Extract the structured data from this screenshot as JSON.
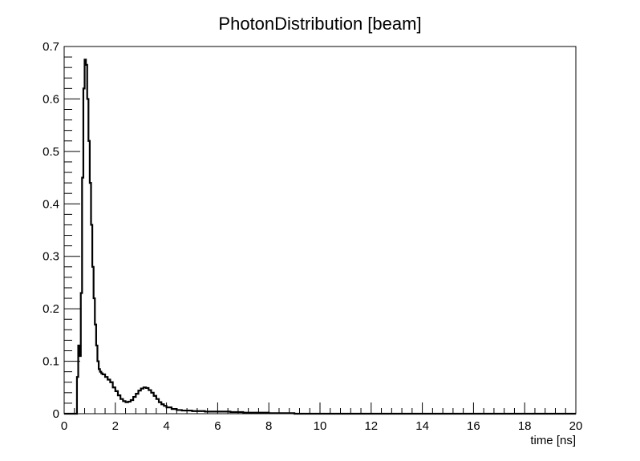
{
  "chart_data": {
    "type": "line",
    "title": "PhotonDistribution [beam]",
    "xlabel": "time [ns]",
    "ylabel": "",
    "xlim": [
      0,
      20
    ],
    "ylim": [
      0,
      0.7
    ],
    "x_ticks": [
      "0",
      "2",
      "4",
      "6",
      "8",
      "10",
      "12",
      "14",
      "16",
      "18",
      "20"
    ],
    "y_ticks": [
      "0",
      "0.1",
      "0.2",
      "0.3",
      "0.4",
      "0.5",
      "0.6",
      "0.7"
    ],
    "grid": false,
    "legend": "none",
    "series": [
      {
        "style": "step",
        "color": "#000000",
        "x": [
          0,
          0.45,
          0.5,
          0.55,
          0.6,
          0.65,
          0.7,
          0.75,
          0.8,
          0.85,
          0.9,
          0.95,
          1.0,
          1.05,
          1.1,
          1.15,
          1.2,
          1.25,
          1.3,
          1.35,
          1.4,
          1.45,
          1.5,
          1.6,
          1.7,
          1.8,
          1.9,
          2.0,
          2.1,
          2.2,
          2.3,
          2.4,
          2.5,
          2.6,
          2.7,
          2.8,
          2.9,
          3.0,
          3.1,
          3.2,
          3.3,
          3.4,
          3.5,
          3.6,
          3.7,
          3.8,
          3.9,
          4.0,
          4.2,
          4.4,
          4.6,
          4.8,
          5.0,
          5.5,
          6.0,
          6.5,
          7.0,
          7.5,
          8.0,
          8.5,
          9.0,
          10.0,
          20.0
        ],
        "y": [
          0,
          0,
          0.07,
          0.13,
          0.11,
          0.23,
          0.45,
          0.62,
          0.675,
          0.665,
          0.6,
          0.52,
          0.44,
          0.36,
          0.28,
          0.22,
          0.17,
          0.13,
          0.1,
          0.085,
          0.08,
          0.077,
          0.075,
          0.07,
          0.065,
          0.06,
          0.05,
          0.043,
          0.035,
          0.028,
          0.024,
          0.022,
          0.023,
          0.026,
          0.032,
          0.038,
          0.044,
          0.048,
          0.05,
          0.049,
          0.045,
          0.04,
          0.034,
          0.028,
          0.022,
          0.018,
          0.015,
          0.012,
          0.009,
          0.007,
          0.006,
          0.006,
          0.005,
          0.004,
          0.004,
          0.003,
          0.002,
          0.002,
          0.001,
          0.001,
          0.0,
          0.0,
          0.0
        ]
      }
    ]
  }
}
